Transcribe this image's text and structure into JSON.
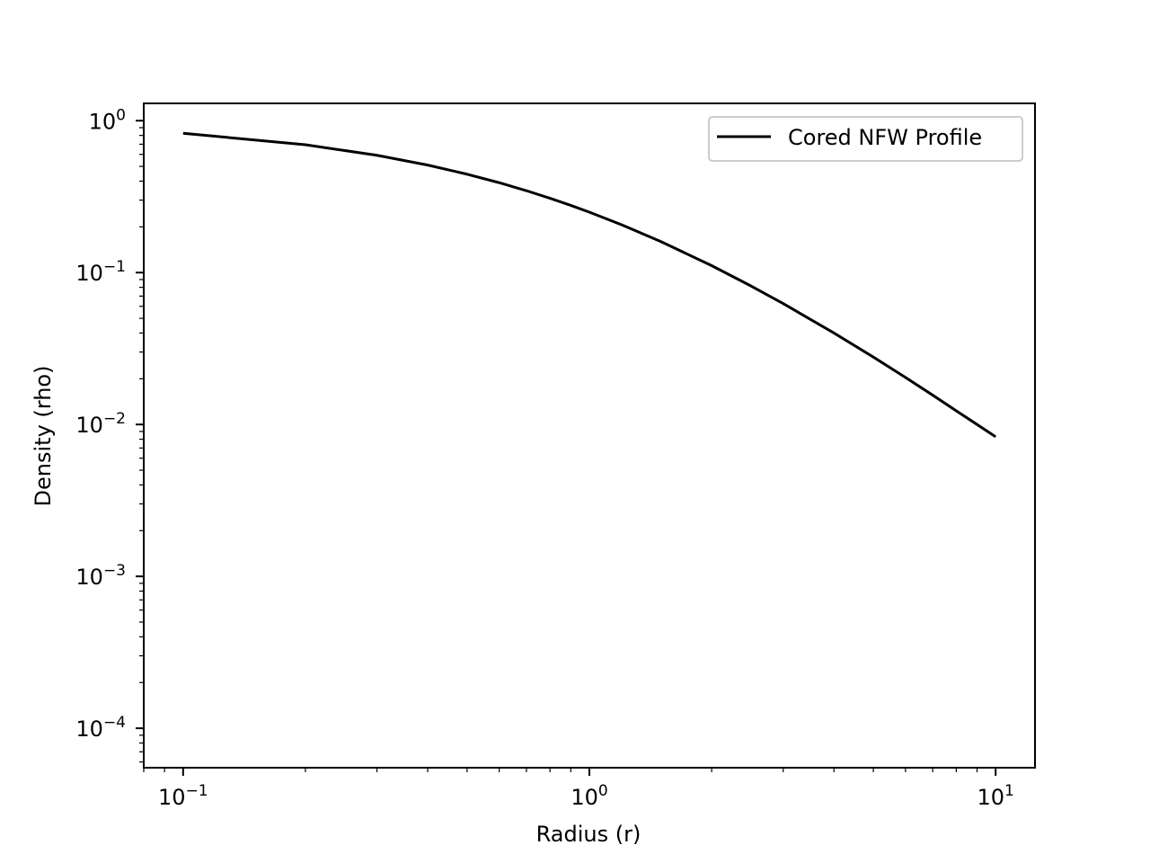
{
  "chart_data": {
    "type": "line",
    "title": "",
    "xlabel": "Radius (r)",
    "ylabel": "Density (rho)",
    "xscale": "log",
    "yscale": "log",
    "xlim": [
      0.08,
      12.5
    ],
    "ylim": [
      5.5e-05,
      1.3
    ],
    "grid": false,
    "legend_position": "top-right",
    "x_ticks": [
      {
        "value": 0.1,
        "base": "10",
        "exp": "−1"
      },
      {
        "value": 1,
        "base": "10",
        "exp": "0"
      },
      {
        "value": 10,
        "base": "10",
        "exp": "1"
      }
    ],
    "y_ticks": [
      {
        "value": 1,
        "base": "10",
        "exp": "0"
      },
      {
        "value": 0.1,
        "base": "10",
        "exp": "−1"
      },
      {
        "value": 0.01,
        "base": "10",
        "exp": "−2"
      },
      {
        "value": 0.001,
        "base": "10",
        "exp": "−3"
      },
      {
        "value": 0.0001,
        "base": "10",
        "exp": "−4"
      }
    ],
    "series": [
      {
        "name": "Cored NFW Profile",
        "color": "#000000",
        "x": [
          0.1,
          0.2,
          0.3,
          0.4,
          0.5,
          0.6,
          0.7,
          0.8,
          0.9,
          1.0,
          1.2,
          1.5,
          2.0,
          2.5,
          3.0,
          4.0,
          5.0,
          6.0,
          7.0,
          8.0,
          9.0,
          10.0
        ],
        "y": [
          0.8264,
          0.6944,
          0.5917,
          0.5102,
          0.4444,
          0.3906,
          0.346,
          0.3086,
          0.277,
          0.25,
          0.2066,
          0.16,
          0.1111,
          0.0816,
          0.0625,
          0.04,
          0.0278,
          0.0204,
          0.0156,
          0.0123,
          0.01,
          0.0083
        ]
      }
    ]
  }
}
